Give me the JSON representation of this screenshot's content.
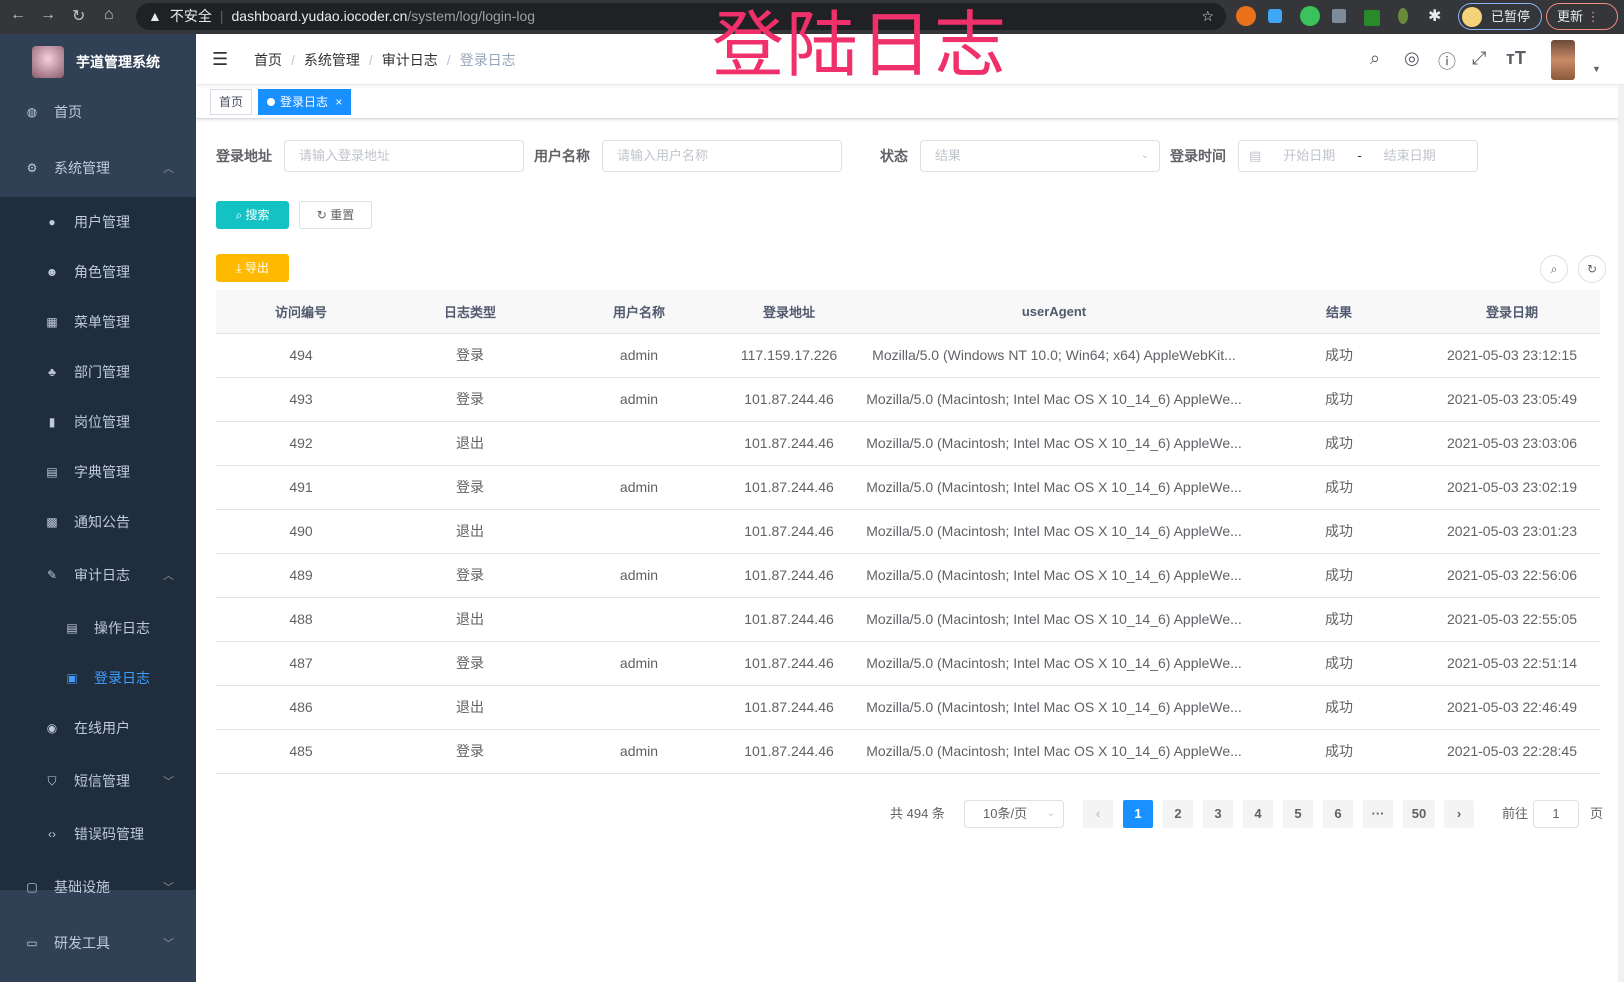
{
  "browser": {
    "url_warning": "不安全",
    "url_host": "dashboard.yudao.iocoder.cn",
    "url_path": "/system/log/login-log",
    "profile_label": "已暂停",
    "update_label": "更新"
  },
  "overlay_title": "登陆日志",
  "sidebar": {
    "app_title": "芋道管理系统",
    "items": [
      {
        "label": "首页",
        "icon": "dashboard-icon"
      },
      {
        "label": "系统管理",
        "icon": "gear-icon",
        "expanded": true
      },
      {
        "label": "用户管理",
        "icon": "user-icon"
      },
      {
        "label": "角色管理",
        "icon": "peoples-icon"
      },
      {
        "label": "菜单管理",
        "icon": "tree-table-icon"
      },
      {
        "label": "部门管理",
        "icon": "tree-icon"
      },
      {
        "label": "岗位管理",
        "icon": "post-icon"
      },
      {
        "label": "字典管理",
        "icon": "dict-icon"
      },
      {
        "label": "通知公告",
        "icon": "message-icon"
      },
      {
        "label": "审计日志",
        "icon": "log-icon",
        "expanded": true
      },
      {
        "label": "操作日志",
        "icon": "form-icon"
      },
      {
        "label": "登录日志",
        "icon": "logininfor-icon",
        "active": true
      },
      {
        "label": "在线用户",
        "icon": "online-icon"
      },
      {
        "label": "短信管理",
        "icon": "shield-icon"
      },
      {
        "label": "错误码管理",
        "icon": "code-icon"
      },
      {
        "label": "基础设施",
        "icon": "monitor-icon"
      },
      {
        "label": "研发工具",
        "icon": "tool-icon"
      }
    ]
  },
  "breadcrumb": [
    "首页",
    "系统管理",
    "审计日志",
    "登录日志"
  ],
  "tags": {
    "home": "首页",
    "current": "登录日志",
    "close": "×"
  },
  "filters": {
    "address_label": "登录地址",
    "address_placeholder": "请输入登录地址",
    "username_label": "用户名称",
    "username_placeholder": "请输入用户名称",
    "status_label": "状态",
    "status_placeholder": "结果",
    "time_label": "登录时间",
    "start_placeholder": "开始日期",
    "end_placeholder": "结束日期",
    "range_sep": "-"
  },
  "buttons": {
    "search": "搜索",
    "reset": "重置",
    "export": "导出"
  },
  "colors": {
    "primary": "#1890ff",
    "search": "#13c2c2",
    "export": "#ffba00",
    "sidebar": "#304156",
    "overlay": "#f0306a"
  },
  "table": {
    "columns": [
      "访问编号",
      "日志类型",
      "用户名称",
      "登录地址",
      "userAgent",
      "结果",
      "登录日期"
    ],
    "rows": [
      [
        "494",
        "登录",
        "admin",
        "117.159.17.226",
        "Mozilla/5.0 (Windows NT 10.0; Win64; x64) AppleWebKit...",
        "成功",
        "2021-05-03 23:12:15"
      ],
      [
        "493",
        "登录",
        "admin",
        "101.87.244.46",
        "Mozilla/5.0 (Macintosh; Intel Mac OS X 10_14_6) AppleWe...",
        "成功",
        "2021-05-03 23:05:49"
      ],
      [
        "492",
        "退出",
        "",
        "101.87.244.46",
        "Mozilla/5.0 (Macintosh; Intel Mac OS X 10_14_6) AppleWe...",
        "成功",
        "2021-05-03 23:03:06"
      ],
      [
        "491",
        "登录",
        "admin",
        "101.87.244.46",
        "Mozilla/5.0 (Macintosh; Intel Mac OS X 10_14_6) AppleWe...",
        "成功",
        "2021-05-03 23:02:19"
      ],
      [
        "490",
        "退出",
        "",
        "101.87.244.46",
        "Mozilla/5.0 (Macintosh; Intel Mac OS X 10_14_6) AppleWe...",
        "成功",
        "2021-05-03 23:01:23"
      ],
      [
        "489",
        "登录",
        "admin",
        "101.87.244.46",
        "Mozilla/5.0 (Macintosh; Intel Mac OS X 10_14_6) AppleWe...",
        "成功",
        "2021-05-03 22:56:06"
      ],
      [
        "488",
        "退出",
        "",
        "101.87.244.46",
        "Mozilla/5.0 (Macintosh; Intel Mac OS X 10_14_6) AppleWe...",
        "成功",
        "2021-05-03 22:55:05"
      ],
      [
        "487",
        "登录",
        "admin",
        "101.87.244.46",
        "Mozilla/5.0 (Macintosh; Intel Mac OS X 10_14_6) AppleWe...",
        "成功",
        "2021-05-03 22:51:14"
      ],
      [
        "486",
        "退出",
        "",
        "101.87.244.46",
        "Mozilla/5.0 (Macintosh; Intel Mac OS X 10_14_6) AppleWe...",
        "成功",
        "2021-05-03 22:46:49"
      ],
      [
        "485",
        "登录",
        "admin",
        "101.87.244.46",
        "Mozilla/5.0 (Macintosh; Intel Mac OS X 10_14_6) AppleWe...",
        "成功",
        "2021-05-03 22:28:45"
      ]
    ]
  },
  "pagination": {
    "total": "共 494 条",
    "page_size": "10条/页",
    "pages": [
      "1",
      "2",
      "3",
      "4",
      "5",
      "6",
      "···",
      "50"
    ],
    "current": "1",
    "prev": "‹",
    "next": "›",
    "goto_label": "前往",
    "goto_value": "1",
    "goto_suffix": "页"
  }
}
